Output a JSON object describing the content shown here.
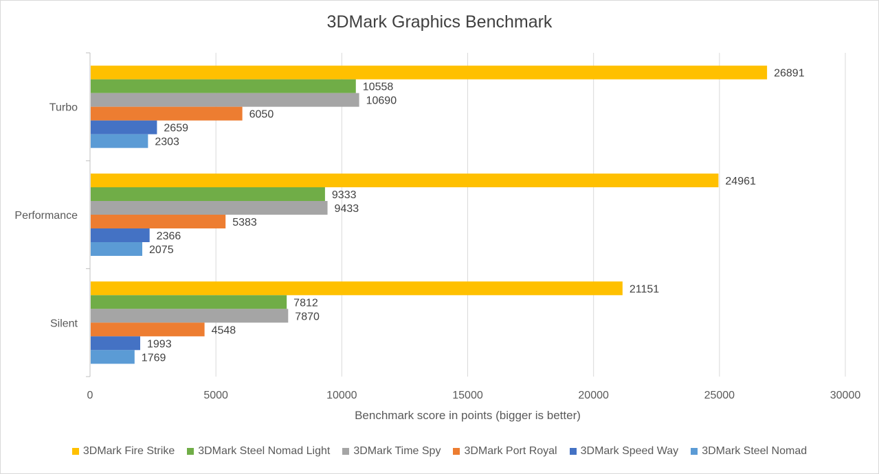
{
  "chart_data": {
    "type": "bar",
    "orientation": "horizontal",
    "title": "3DMark Graphics Benchmark",
    "xlabel": "Benchmark score in points (bigger is better)",
    "ylabel": "",
    "xlim": [
      0,
      30000
    ],
    "xticks": [
      0,
      5000,
      10000,
      15000,
      20000,
      25000,
      30000
    ],
    "categories": [
      "Turbo",
      "Performance",
      "Silent"
    ],
    "grid": "vertical",
    "legend_position": "bottom",
    "series": [
      {
        "name": "3DMark Fire Strike",
        "color": "#ffc000",
        "values": [
          26891,
          24961,
          21151
        ]
      },
      {
        "name": "3DMark Steel Nomad Light",
        "color": "#70ad47",
        "values": [
          10558,
          9333,
          7812
        ]
      },
      {
        "name": "3DMark Time Spy",
        "color": "#a5a5a5",
        "values": [
          10690,
          9433,
          7870
        ]
      },
      {
        "name": "3DMark Port Royal",
        "color": "#ed7d31",
        "values": [
          6050,
          5383,
          4548
        ]
      },
      {
        "name": "3DMark Speed Way",
        "color": "#4472c4",
        "values": [
          2659,
          2366,
          1993
        ]
      },
      {
        "name": "3DMark Steel Nomad",
        "color": "#5b9bd5",
        "values": [
          2303,
          2075,
          1769
        ]
      }
    ]
  }
}
